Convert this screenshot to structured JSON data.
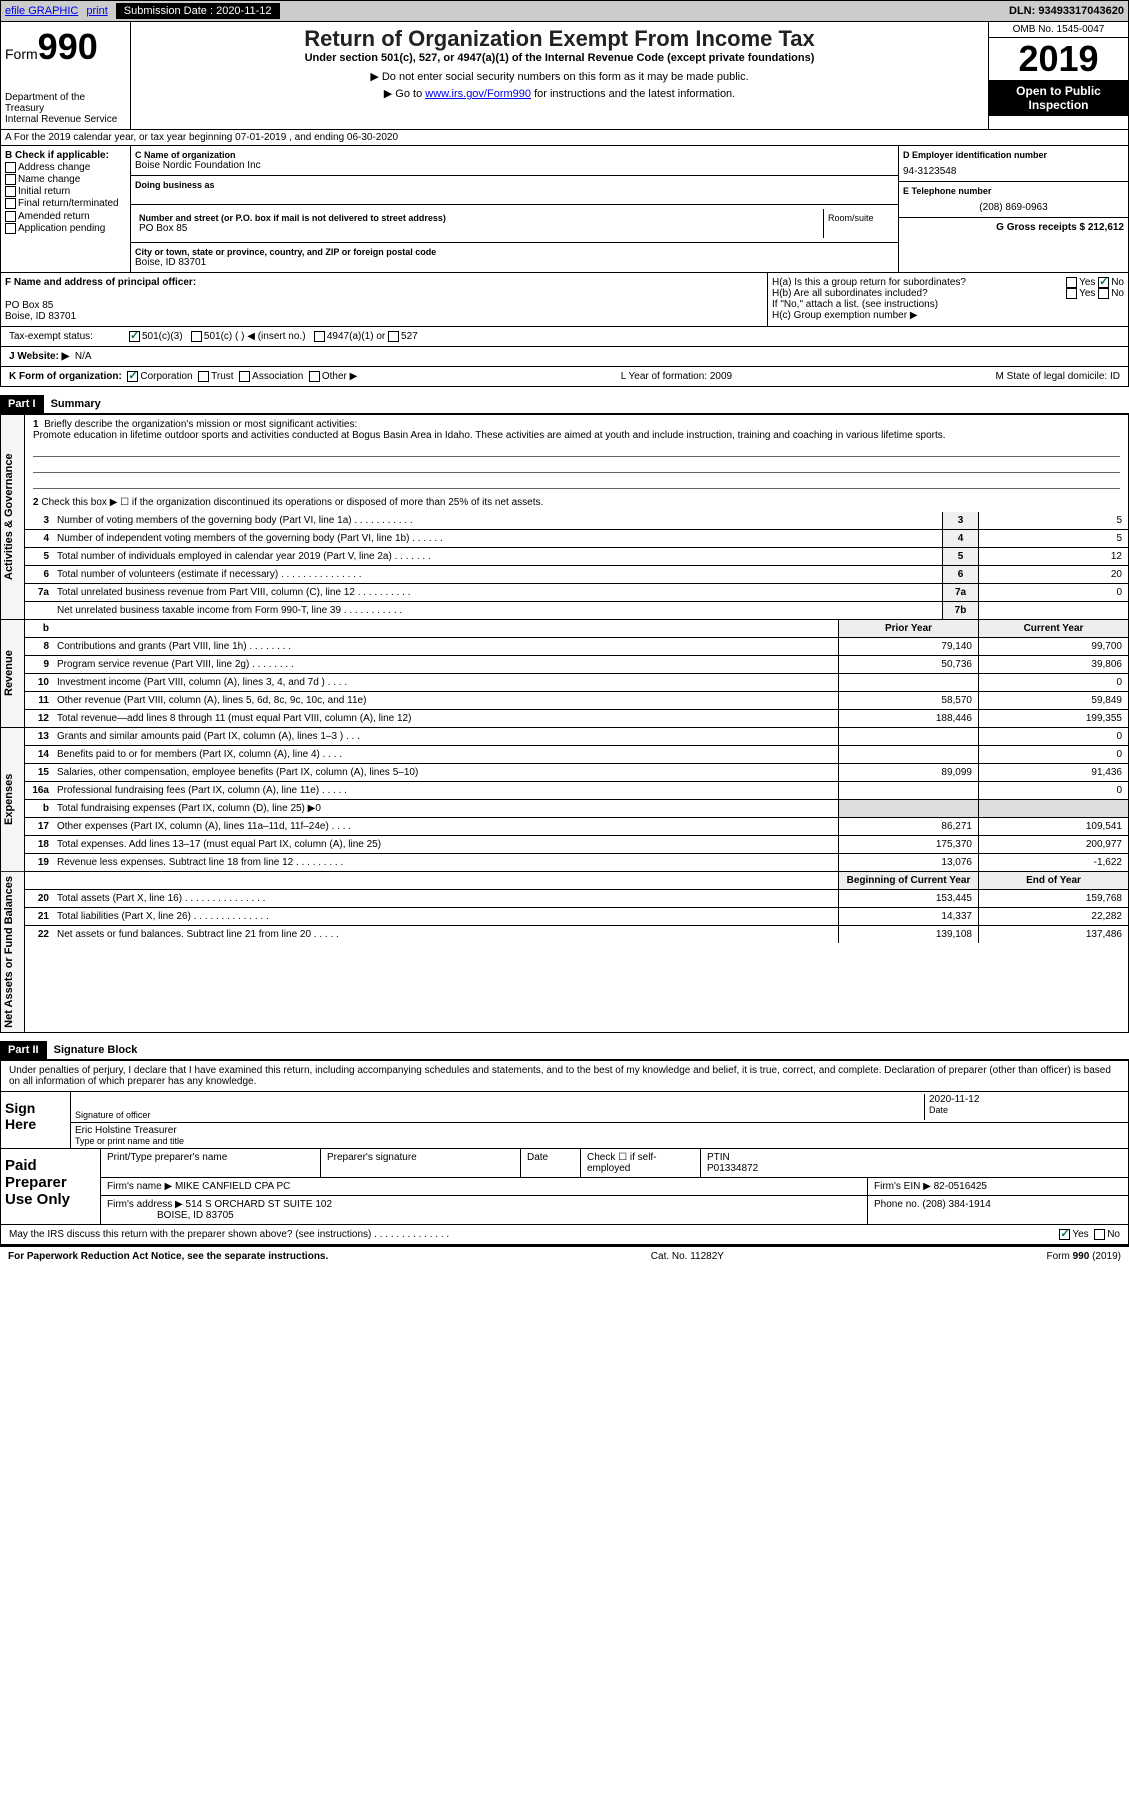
{
  "topbar": {
    "efile": "efile GRAPHIC",
    "print": "print",
    "sub_label": "Submission Date : 2020-11-12",
    "dln": "DLN: 93493317043620"
  },
  "header": {
    "form_prefix": "Form",
    "form_num": "990",
    "dept": "Department of the Treasury",
    "irs": "Internal Revenue Service",
    "title": "Return of Organization Exempt From Income Tax",
    "sub1": "Under section 501(c), 527, or 4947(a)(1) of the Internal Revenue Code (except private foundations)",
    "sub2": "▶ Do not enter social security numbers on this form as it may be made public.",
    "sub3_pre": "▶ Go to ",
    "sub3_link": "www.irs.gov/Form990",
    "sub3_post": " for instructions and the latest information.",
    "omb": "OMB No. 1545-0047",
    "year": "2019",
    "public1": "Open to Public",
    "public2": "Inspection"
  },
  "rowA": "A For the 2019 calendar year, or tax year beginning 07-01-2019    , and ending 06-30-2020",
  "colB": {
    "label": "B Check if applicable:",
    "opts": [
      "Address change",
      "Name change",
      "Initial return",
      "Final return/terminated",
      "Amended return",
      "Application pending"
    ]
  },
  "orgbox": {
    "name_label": "C Name of organization",
    "name": "Boise Nordic Foundation Inc",
    "dba_label": "Doing business as",
    "addr_label": "Number and street (or P.O. box if mail is not delivered to street address)",
    "room_label": "Room/suite",
    "addr": "PO Box 85",
    "city_label": "City or town, state or province, country, and ZIP or foreign postal code",
    "city": "Boise, ID  83701"
  },
  "rightbox": {
    "ein_label": "D Employer identification number",
    "ein": "94-3123548",
    "tel_label": "E Telephone number",
    "tel": "(208) 869-0963",
    "gross_label": "G Gross receipts $ 212,612"
  },
  "lower": {
    "f_label": "F  Name and address of principal officer:",
    "f_addr1": "PO Box 85",
    "f_addr2": "Boise, ID  83701",
    "ha": "H(a)  Is this a group return for subordinates?",
    "hb": "H(b)  Are all subordinates included?",
    "hb_note": "If \"No,\" attach a list. (see instructions)",
    "hc": "H(c)  Group exemption number ▶",
    "yes": "Yes",
    "no": "No"
  },
  "taxrow": {
    "label": "Tax-exempt status:",
    "o1": "501(c)(3)",
    "o2": "501(c) (   ) ◀ (insert no.)",
    "o3": "4947(a)(1) or",
    "o4": "527"
  },
  "webrow": {
    "label": "J   Website: ▶",
    "val": "N/A"
  },
  "krow": {
    "k": "K Form of organization:",
    "corp": "Corporation",
    "trust": "Trust",
    "assoc": "Association",
    "other": "Other ▶",
    "l": "L Year of formation: 2009",
    "m": "M State of legal domicile: ID"
  },
  "part1": {
    "header": "Part I",
    "title": "Summary",
    "q1_label": "1",
    "q1": "Briefly describe the organization's mission or most significant activities:",
    "q1_text": "Promote education in lifetime outdoor sports and activities conducted at Bogus Basin Area in Idaho. These activities are aimed at youth and include instruction, training and coaching in various lifetime sports.",
    "q2": "Check this box ▶ ☐  if the organization discontinued its operations or disposed of more than 25% of its net assets."
  },
  "gov_lines": [
    {
      "n": "3",
      "d": "Number of voting members of the governing body (Part VI, line 1a)  .  .  .  .  .  .  .  .  .  .  .",
      "c": "3",
      "v": "5"
    },
    {
      "n": "4",
      "d": "Number of independent voting members of the governing body (Part VI, line 1b)  .  .  .  .  .  .",
      "c": "4",
      "v": "5"
    },
    {
      "n": "5",
      "d": "Total number of individuals employed in calendar year 2019 (Part V, line 2a)  .  .  .  .  .  .  .",
      "c": "5",
      "v": "12"
    },
    {
      "n": "6",
      "d": "Total number of volunteers (estimate if necessary)  .  .  .  .  .  .  .  .  .  .  .  .  .  .  .",
      "c": "6",
      "v": "20"
    },
    {
      "n": "7a",
      "d": "Total unrelated business revenue from Part VIII, column (C), line 12  .  .  .  .  .  .  .  .  .  .",
      "c": "7a",
      "v": "0"
    },
    {
      "n": "",
      "d": "Net unrelated business taxable income from Form 990-T, line 39  .  .  .  .  .  .  .  .  .  .  .",
      "c": "7b",
      "v": ""
    }
  ],
  "rev_header": {
    "py": "Prior Year",
    "cy": "Current Year"
  },
  "rev_lines": [
    {
      "n": "8",
      "d": "Contributions and grants (Part VIII, line 1h)  .  .  .  .  .  .  .  .",
      "py": "79,140",
      "cy": "99,700"
    },
    {
      "n": "9",
      "d": "Program service revenue (Part VIII, line 2g)  .  .  .  .  .  .  .  .",
      "py": "50,736",
      "cy": "39,806"
    },
    {
      "n": "10",
      "d": "Investment income (Part VIII, column (A), lines 3, 4, and 7d )  .  .  .  .",
      "py": "",
      "cy": "0"
    },
    {
      "n": "11",
      "d": "Other revenue (Part VIII, column (A), lines 5, 6d, 8c, 9c, 10c, and 11e)",
      "py": "58,570",
      "cy": "59,849"
    },
    {
      "n": "12",
      "d": "Total revenue—add lines 8 through 11 (must equal Part VIII, column (A), line 12)",
      "py": "188,446",
      "cy": "199,355"
    }
  ],
  "exp_lines": [
    {
      "n": "13",
      "d": "Grants and similar amounts paid (Part IX, column (A), lines 1–3 )  .  .  .",
      "py": "",
      "cy": "0"
    },
    {
      "n": "14",
      "d": "Benefits paid to or for members (Part IX, column (A), line 4)  .  .  .  .",
      "py": "",
      "cy": "0"
    },
    {
      "n": "15",
      "d": "Salaries, other compensation, employee benefits (Part IX, column (A), lines 5–10)",
      "py": "89,099",
      "cy": "91,436"
    },
    {
      "n": "16a",
      "d": "Professional fundraising fees (Part IX, column (A), line 11e)  .  .  .  .  .",
      "py": "",
      "cy": "0"
    },
    {
      "n": "b",
      "d": "Total fundraising expenses (Part IX, column (D), line 25) ▶0",
      "py": "",
      "cy": "",
      "shaded": true
    },
    {
      "n": "17",
      "d": "Other expenses (Part IX, column (A), lines 11a–11d, 11f–24e)  .  .  .  .",
      "py": "86,271",
      "cy": "109,541"
    },
    {
      "n": "18",
      "d": "Total expenses. Add lines 13–17 (must equal Part IX, column (A), line 25)",
      "py": "175,370",
      "cy": "200,977"
    },
    {
      "n": "19",
      "d": "Revenue less expenses. Subtract line 18 from line 12  .  .  .  .  .  .  .  .  .",
      "py": "13,076",
      "cy": "-1,622"
    }
  ],
  "net_header": {
    "py": "Beginning of Current Year",
    "cy": "End of Year"
  },
  "net_lines": [
    {
      "n": "20",
      "d": "Total assets (Part X, line 16)  .  .  .  .  .  .  .  .  .  .  .  .  .  .  .",
      "py": "153,445",
      "cy": "159,768"
    },
    {
      "n": "21",
      "d": "Total liabilities (Part X, line 26)  .  .  .  .  .  .  .  .  .  .  .  .  .  .",
      "py": "14,337",
      "cy": "22,282"
    },
    {
      "n": "22",
      "d": "Net assets or fund balances. Subtract line 21 from line 20  .  .  .  .  .",
      "py": "139,108",
      "cy": "137,486"
    }
  ],
  "part2": {
    "header": "Part II",
    "title": "Signature Block",
    "decl": "Under penalties of perjury, I declare that I have examined this return, including accompanying schedules and statements, and to the best of my knowledge and belief, it is true, correct, and complete. Declaration of preparer (other than officer) is based on all information of which preparer has any knowledge."
  },
  "sign": {
    "label": "Sign Here",
    "sig_label": "Signature of officer",
    "date_label": "Date",
    "date": "2020-11-12",
    "name": "Eric Holstine  Treasurer",
    "name_label": "Type or print name and title"
  },
  "prep": {
    "label": "Paid Preparer Use Only",
    "h1": "Print/Type preparer's name",
    "h2": "Preparer's signature",
    "h3": "Date",
    "h4": "Check ☐ if self-employed",
    "h5_label": "PTIN",
    "h5": "P01334872",
    "firm_label": "Firm's name    ▶",
    "firm": "MIKE CANFIELD CPA PC",
    "ein_label": "Firm's EIN ▶",
    "ein": "82-0516425",
    "addr_label": "Firm's address ▶",
    "addr1": "514 S ORCHARD ST SUITE 102",
    "addr2": "BOISE, ID  83705",
    "phone_label": "Phone no.",
    "phone": "(208) 384-1914",
    "discuss": "May the IRS discuss this return with the preparer shown above? (see instructions)  .   .   .   .   .   .   .   .   .   .   .   .   .   .",
    "yes": "Yes",
    "no": "No"
  },
  "footer": {
    "left": "For Paperwork Reduction Act Notice, see the separate instructions.",
    "mid": "Cat. No. 11282Y",
    "right": "Form 990 (2019)"
  },
  "vtabs": {
    "gov": "Activities & Governance",
    "rev": "Revenue",
    "exp": "Expenses",
    "net": "Net Assets or Fund Balances"
  }
}
